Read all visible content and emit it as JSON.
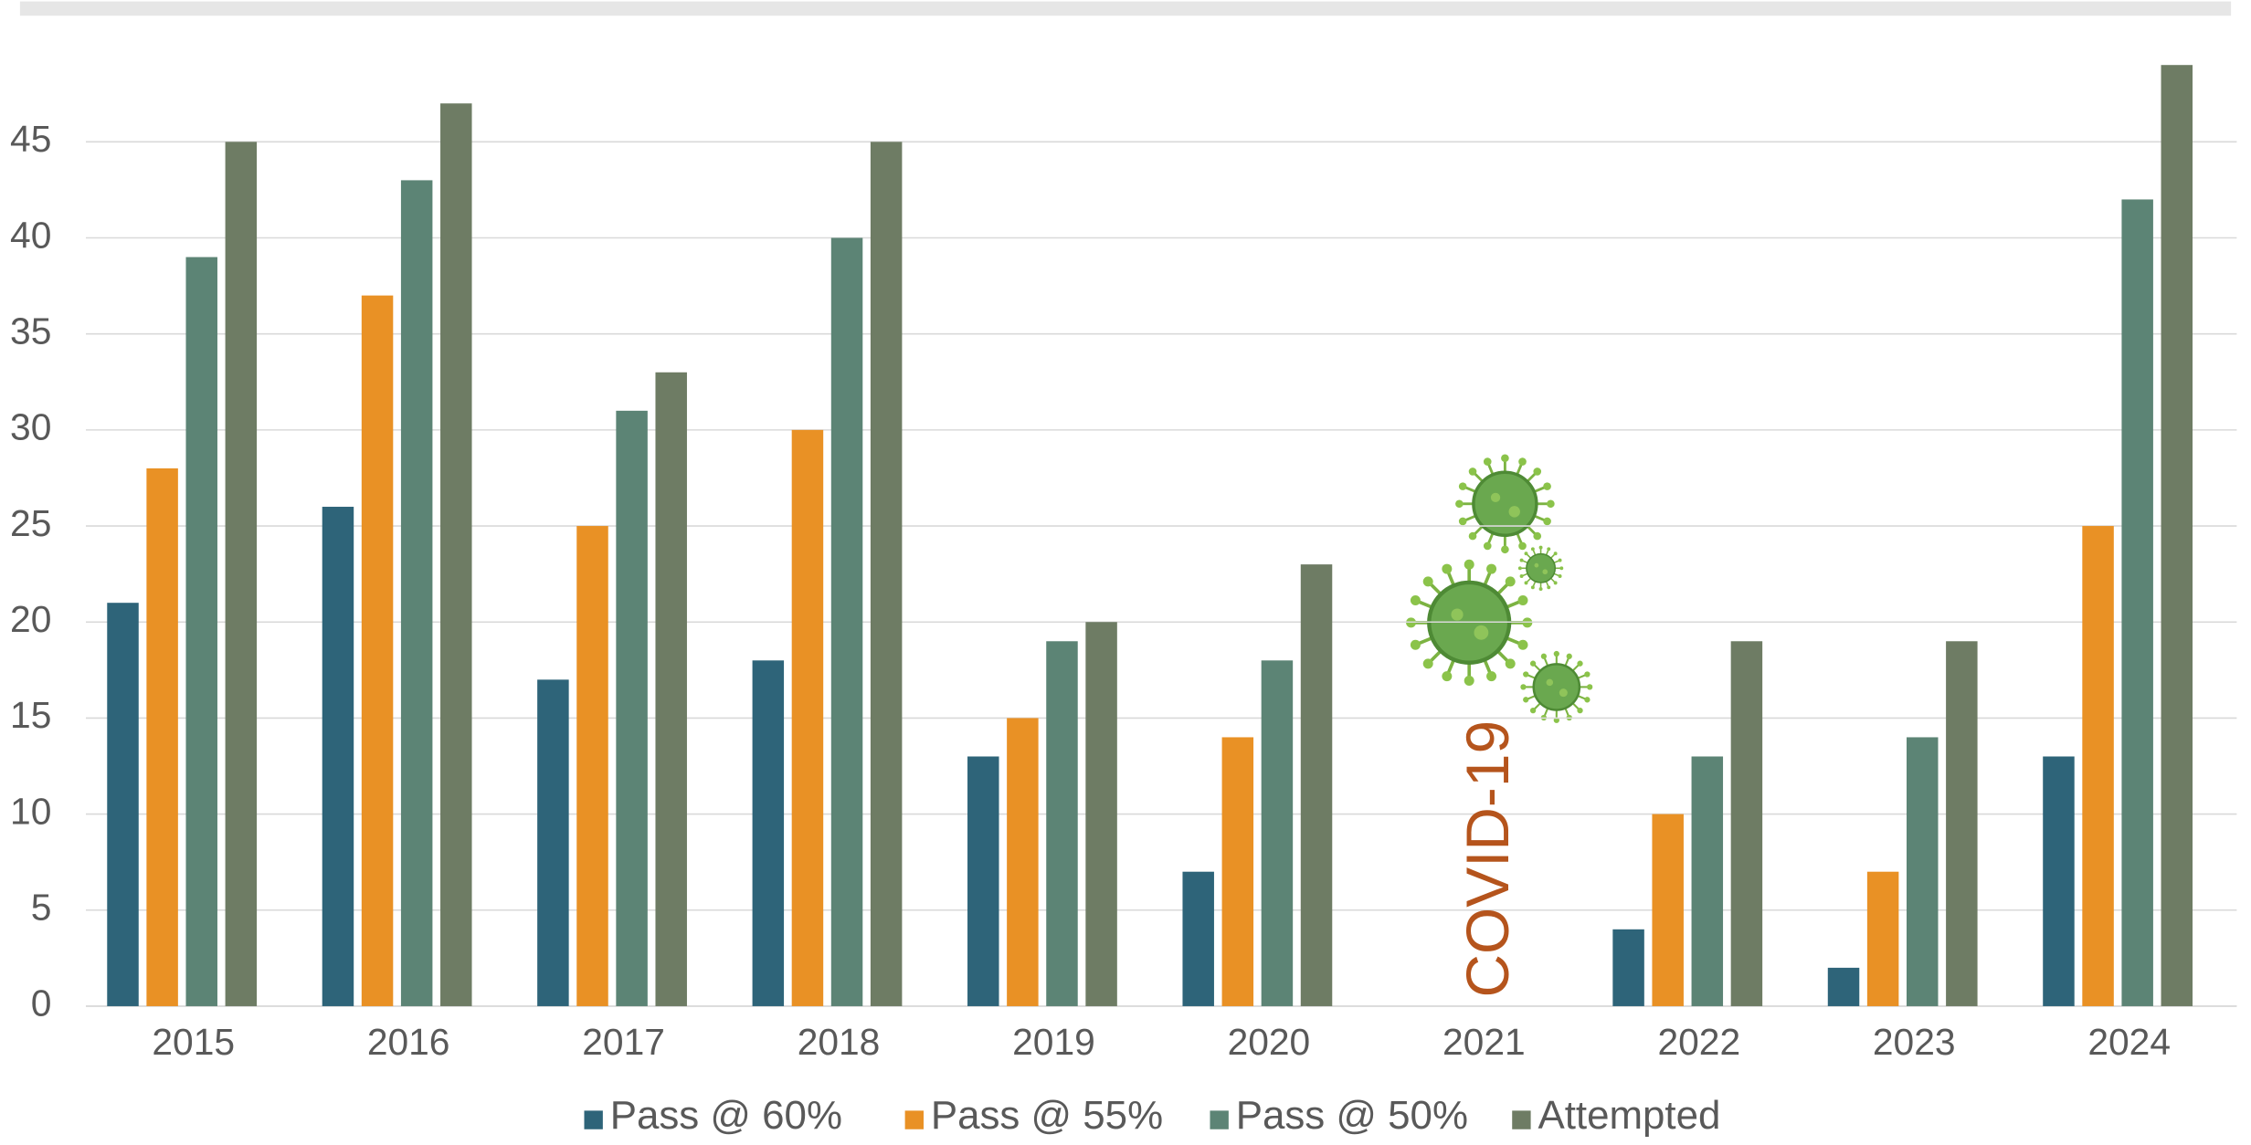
{
  "chart_data": {
    "type": "bar",
    "categories": [
      "2015",
      "2016",
      "2017",
      "2018",
      "2019",
      "2020",
      "2021",
      "2022",
      "2023",
      "2024"
    ],
    "series": [
      {
        "name": "Pass @ 60%",
        "color": "#2e6479",
        "values": [
          21,
          26,
          17,
          18,
          13,
          7,
          null,
          4,
          2,
          13
        ]
      },
      {
        "name": "Pass @ 55%",
        "color": "#e99125",
        "values": [
          28,
          37,
          25,
          30,
          15,
          14,
          null,
          10,
          7,
          25
        ]
      },
      {
        "name": "Pass @ 50%",
        "color": "#5c8475",
        "values": [
          39,
          43,
          31,
          40,
          19,
          18,
          null,
          13,
          14,
          42
        ]
      },
      {
        "name": "Attempted",
        "color": "#6e7c64",
        "values": [
          45,
          47,
          33,
          45,
          20,
          23,
          null,
          19,
          19,
          49
        ]
      }
    ],
    "ylim": [
      0,
      50
    ],
    "yticks": [
      0,
      5,
      10,
      15,
      20,
      25,
      30,
      35,
      40,
      45
    ],
    "grid": true,
    "legend": "bottom",
    "annotation": "COVID-19",
    "annotation_color": "#b5541c"
  }
}
